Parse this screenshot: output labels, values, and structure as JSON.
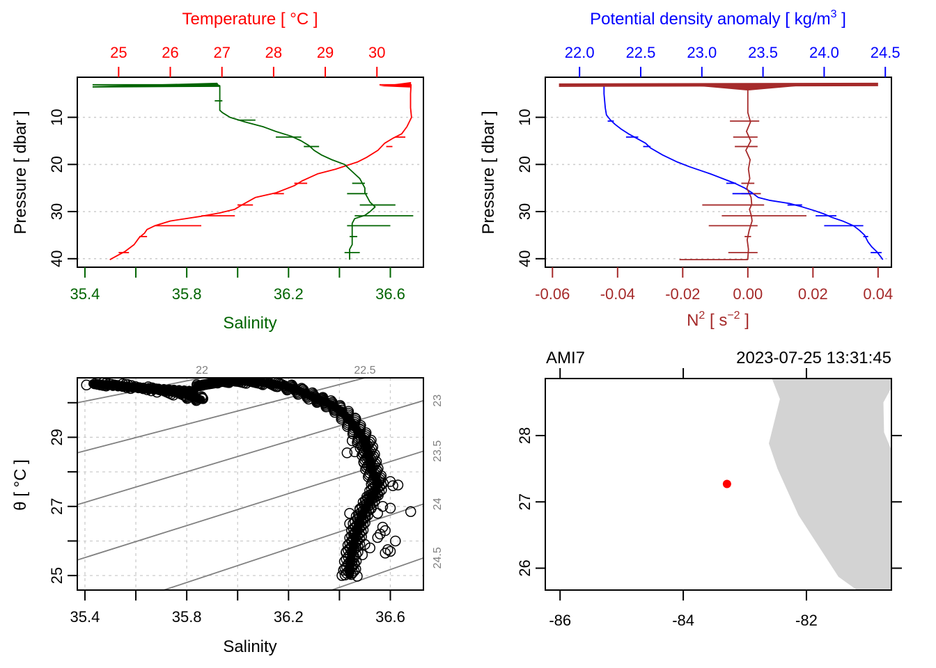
{
  "colors": {
    "temperature": "#ff0000",
    "salinity": "#006400",
    "density": "#0000ff",
    "n2": "#a52a2a",
    "grid": "#cccccc",
    "isopycnal": "#808080",
    "land": "#d3d3d3",
    "station": "#ff0000",
    "frame": "#000000"
  },
  "chart_data": [
    {
      "id": "temperature-salinity-profile",
      "type": "line",
      "title": "Temperature [ °C ]",
      "xlabel_top": "Temperature [ °C ]",
      "xlabel_bottom": "Salinity",
      "ylabel": "Pressure [ dbar ]",
      "ylim": [
        41.8,
        1.5
      ],
      "yticks": [
        "10",
        "20",
        "30",
        "40"
      ],
      "xtop_ticks": [
        "25",
        "26",
        "27",
        "28",
        "29",
        "30"
      ],
      "xtop_range": [
        24.2,
        30.9
      ],
      "xbottom_ticks": [
        "35.4",
        "35.8",
        "36.2",
        "36.6"
      ],
      "xbottom_tick_values": [
        35.4,
        35.6,
        35.8,
        36.0,
        36.2,
        36.4,
        36.6
      ],
      "xbottom_range": [
        35.37,
        36.73
      ],
      "grid": "horizontal-dotted",
      "series": [
        {
          "name": "Temperature",
          "axis": "top",
          "pressure": [
            3.1,
            3.1,
            3.2,
            5,
            8,
            10,
            12,
            13.5,
            14.5,
            15.5,
            17,
            18.5,
            19.5,
            20.1,
            21,
            22,
            23.5,
            24.5,
            26,
            27,
            28.5,
            29.5,
            30.3,
            31,
            32,
            33,
            33.8,
            34.6,
            35.5,
            37,
            38.5,
            39.3,
            40.2
          ],
          "values": [
            30.05,
            30.66,
            30.66,
            30.65,
            30.65,
            30.67,
            30.58,
            30.48,
            30.3,
            30.15,
            30.02,
            29.8,
            29.62,
            29.45,
            29.2,
            28.85,
            28.55,
            28.4,
            28.05,
            27.65,
            27.4,
            27.25,
            26.95,
            26.6,
            26.0,
            25.7,
            25.55,
            25.5,
            25.4,
            25.3,
            25.12,
            24.98,
            24.83
          ]
        },
        {
          "name": "Salinity",
          "axis": "bottom",
          "pressure": [
            3.1,
            3.1,
            3.3,
            6,
            8.5,
            9,
            10,
            11,
            12,
            13,
            14,
            15,
            16,
            17,
            18,
            19,
            20,
            21,
            22,
            23,
            24,
            25,
            26,
            27,
            28,
            29,
            30,
            30.8,
            31.5,
            32.5,
            33,
            34,
            35,
            36,
            37,
            38,
            39,
            40.2
          ],
          "values": [
            35.43,
            35.92,
            35.93,
            35.93,
            35.93,
            35.94,
            35.97,
            36.03,
            36.1,
            36.15,
            36.21,
            36.25,
            36.28,
            36.3,
            36.33,
            36.37,
            36.42,
            36.44,
            36.46,
            36.48,
            36.49,
            36.5,
            36.5,
            36.51,
            36.52,
            36.54,
            36.52,
            36.5,
            36.46,
            36.45,
            36.45,
            36.45,
            36.45,
            36.45,
            36.45,
            36.44,
            36.44,
            36.44
          ]
        }
      ],
      "spikes": [
        {
          "series": "Temperature",
          "pressure": 14.2,
          "from": 30.35,
          "to": 30.55
        },
        {
          "series": "Temperature",
          "pressure": 16.2,
          "from": 30.18,
          "to": 30.3
        },
        {
          "series": "Temperature",
          "pressure": 24.0,
          "from": 28.4,
          "to": 28.65
        },
        {
          "series": "Temperature",
          "pressure": 26.2,
          "from": 28.0,
          "to": 28.2
        },
        {
          "series": "Temperature",
          "pressure": 28.6,
          "from": 27.3,
          "to": 27.6
        },
        {
          "series": "Temperature",
          "pressure": 30.9,
          "from": 26.6,
          "to": 27.25
        },
        {
          "series": "Temperature",
          "pressure": 33.0,
          "from": 25.7,
          "to": 26.6
        },
        {
          "series": "Temperature",
          "pressure": 35.3,
          "from": 25.4,
          "to": 25.55
        },
        {
          "series": "Temperature",
          "pressure": 38.7,
          "from": 25.0,
          "to": 25.2
        },
        {
          "series": "Salinity",
          "pressure": 6.5,
          "from": 35.91,
          "to": 35.94
        },
        {
          "series": "Salinity",
          "pressure": 10.6,
          "from": 36.0,
          "to": 36.07
        },
        {
          "series": "Salinity",
          "pressure": 14.2,
          "from": 36.15,
          "to": 36.25
        },
        {
          "series": "Salinity",
          "pressure": 16.2,
          "from": 36.26,
          "to": 36.32
        },
        {
          "series": "Salinity",
          "pressure": 24.0,
          "from": 36.45,
          "to": 36.5
        },
        {
          "series": "Salinity",
          "pressure": 26.2,
          "from": 36.43,
          "to": 36.51
        },
        {
          "series": "Salinity",
          "pressure": 28.6,
          "from": 36.48,
          "to": 36.62
        },
        {
          "series": "Salinity",
          "pressure": 30.9,
          "from": 36.46,
          "to": 36.69
        },
        {
          "series": "Salinity",
          "pressure": 33.0,
          "from": 36.43,
          "to": 36.6
        },
        {
          "series": "Salinity",
          "pressure": 35.3,
          "from": 36.44,
          "to": 36.47
        },
        {
          "series": "Salinity",
          "pressure": 38.7,
          "from": 36.42,
          "to": 36.48
        }
      ]
    },
    {
      "id": "density-n2-profile",
      "type": "line",
      "title": "Potential density anomaly [ kg/m³ ]",
      "xlabel_top_main": "Potential density anomaly [ kg/m",
      "xlabel_top_sup": "3",
      "xlabel_top_close": " ]",
      "xlabel_bottom_main": "N",
      "xlabel_bottom_sup": "2",
      "xlabel_bottom_unit": " [ s",
      "xlabel_bottom_unit_sup": "−2",
      "xlabel_bottom_close": " ]",
      "ylabel": "Pressure [ dbar ]",
      "ylim": [
        41.8,
        1.5
      ],
      "yticks": [
        "10",
        "20",
        "30",
        "40"
      ],
      "xtop_ticks": [
        "22.0",
        "22.5",
        "23.0",
        "23.5",
        "24.0",
        "24.5"
      ],
      "xtop_range": [
        21.72,
        24.55
      ],
      "xbottom_ticks": [
        "-0.06",
        "-0.04",
        "-0.02",
        "0.00",
        "0.02",
        "0.04"
      ],
      "xbottom_range": [
        -0.0622,
        0.0441
      ],
      "grid": "horizontal-dotted",
      "series": [
        {
          "name": "Potential density anomaly",
          "axis": "top",
          "pressure": [
            3.1,
            3.1,
            3.2,
            5,
            8,
            9.5,
            10.5,
            11.5,
            12.5,
            13.5,
            14.5,
            15.5,
            16.5,
            18,
            19.5,
            20.5,
            22,
            23,
            24,
            25,
            26,
            27,
            27.6,
            28.3,
            29,
            29.8,
            30.5,
            31.2,
            32,
            33,
            34,
            35,
            36.5,
            37.5,
            38.5,
            39.5,
            40.2
          ],
          "values": [
            21.93,
            22.2,
            22.2,
            22.2,
            22.21,
            22.22,
            22.25,
            22.29,
            22.34,
            22.4,
            22.47,
            22.54,
            22.58,
            22.68,
            22.8,
            22.9,
            23.07,
            23.17,
            23.27,
            23.35,
            23.41,
            23.46,
            23.55,
            23.72,
            23.82,
            23.92,
            24.0,
            24.06,
            24.15,
            24.24,
            24.29,
            24.33,
            24.36,
            24.39,
            24.43,
            24.46,
            24.48
          ]
        },
        {
          "name": "N2",
          "axis": "bottom",
          "pressure": [
            3.1,
            3.6,
            4,
            6,
            9,
            11,
            13,
            15,
            17,
            19,
            21,
            23,
            25,
            27,
            28.5,
            29.5,
            31,
            32,
            34,
            36,
            38,
            40,
            40.2
          ],
          "values": [
            0.0,
            0.0005,
            0.0,
            0.0,
            0.0,
            0.0008,
            -0.0004,
            0.0009,
            -0.0006,
            0.0007,
            0.0002,
            0.0006,
            -0.0003,
            0.001,
            0.0012,
            0.0005,
            0.0011,
            0.0013,
            0.0004,
            -0.0002,
            0.0002,
            0.0,
            0.0
          ]
        }
      ],
      "n2_top_spike": {
        "pressure": 3.1,
        "from": -0.058,
        "to": 0.04
      },
      "spikes": [
        {
          "series": "N2",
          "pressure": 10.8,
          "from": -0.0055,
          "to": 0.0035
        },
        {
          "series": "N2",
          "pressure": 14.2,
          "from": -0.0045,
          "to": 0.003
        },
        {
          "series": "N2",
          "pressure": 16.2,
          "from": -0.004,
          "to": 0.003
        },
        {
          "series": "N2",
          "pressure": 24.0,
          "from": -0.002,
          "to": 0.002
        },
        {
          "series": "N2",
          "pressure": 26.2,
          "from": -0.002,
          "to": 0.004
        },
        {
          "series": "N2",
          "pressure": 28.6,
          "from": -0.014,
          "to": 0.005
        },
        {
          "series": "N2",
          "pressure": 30.9,
          "from": -0.008,
          "to": 0.018
        },
        {
          "series": "N2",
          "pressure": 33.0,
          "from": -0.012,
          "to": 0.003
        },
        {
          "series": "N2",
          "pressure": 35.3,
          "from": -0.001,
          "to": 0.001
        },
        {
          "series": "N2",
          "pressure": 38.7,
          "from": -0.006,
          "to": 0.003
        },
        {
          "series": "N2",
          "pressure": 40.2,
          "from": -0.021,
          "to": 0.0
        },
        {
          "series": "Potential density anomaly",
          "pressure": 3.1,
          "from": 21.93,
          "to": 22.5
        },
        {
          "series": "Potential density anomaly",
          "pressure": 10.8,
          "from": 22.23,
          "to": 22.28
        },
        {
          "series": "Potential density anomaly",
          "pressure": 14.2,
          "from": 22.38,
          "to": 22.48
        },
        {
          "series": "Potential density anomaly",
          "pressure": 16.2,
          "from": 22.52,
          "to": 22.58
        },
        {
          "series": "Potential density anomaly",
          "pressure": 24.0,
          "from": 23.2,
          "to": 23.28
        },
        {
          "series": "Potential density anomaly",
          "pressure": 26.2,
          "from": 23.25,
          "to": 23.42
        },
        {
          "series": "Potential density anomaly",
          "pressure": 28.6,
          "from": 23.7,
          "to": 23.82
        },
        {
          "series": "Potential density anomaly",
          "pressure": 30.9,
          "from": 23.93,
          "to": 24.1
        },
        {
          "series": "Potential density anomaly",
          "pressure": 33.0,
          "from": 24.0,
          "to": 24.32
        },
        {
          "series": "Potential density anomaly",
          "pressure": 35.3,
          "from": 24.32,
          "to": 24.36
        },
        {
          "series": "Potential density anomaly",
          "pressure": 38.7,
          "from": 24.38,
          "to": 24.47
        }
      ]
    },
    {
      "id": "ts-diagram",
      "type": "scatter",
      "xlabel": "Salinity",
      "ylabel": "θ [ °C ]",
      "xlim": [
        35.37,
        36.73
      ],
      "ylim": [
        24.58,
        30.72
      ],
      "xticks": [
        "35.4",
        "35.8",
        "36.2",
        "36.6"
      ],
      "xtick_values": [
        35.4,
        35.6,
        35.8,
        36.0,
        36.2,
        36.4,
        36.6
      ],
      "yticks": [
        "25",
        "27",
        "29"
      ],
      "ytick_values": [
        25,
        26,
        27,
        28,
        29,
        30
      ],
      "grid": true,
      "isopycnals": [
        {
          "label": "22",
          "label_side": "top",
          "s_left": 35.37,
          "t_left": 30.0,
          "s_right": 35.86,
          "t_right": 30.72
        },
        {
          "label": "22.5",
          "label_side": "top",
          "s_left": 35.37,
          "t_left": 28.55,
          "s_right": 36.5,
          "t_right": 30.72
        },
        {
          "label": "23",
          "label_side": "right",
          "s_left": 35.37,
          "t_left": 27.05,
          "s_right": 36.73,
          "t_right": 30.06
        },
        {
          "label": "23.5",
          "label_side": "right",
          "s_left": 35.37,
          "t_left": 25.45,
          "s_right": 36.73,
          "t_right": 28.6
        },
        {
          "label": "24",
          "label_side": "right",
          "s_left": 35.71,
          "t_left": 24.58,
          "s_right": 36.73,
          "t_right": 27.07
        },
        {
          "label": "24.5",
          "label_side": "right",
          "s_left": 36.37,
          "t_left": 24.58,
          "s_right": 36.73,
          "t_right": 25.51
        }
      ],
      "points_trace": {
        "salinity": [
          35.43,
          35.55,
          35.7,
          35.8,
          35.86,
          35.84,
          35.93,
          36.0,
          36.1,
          36.18,
          36.24,
          36.3,
          36.35,
          36.4,
          36.44,
          36.47,
          36.5,
          36.51,
          36.52,
          36.53,
          36.55,
          36.54,
          36.52,
          36.5,
          36.48,
          36.47,
          36.46,
          36.45,
          36.44,
          36.44
        ],
        "theta": [
          30.55,
          30.5,
          30.35,
          30.22,
          30.08,
          30.48,
          30.6,
          30.62,
          30.58,
          30.5,
          30.35,
          30.15,
          30.0,
          29.8,
          29.5,
          29.2,
          28.9,
          28.6,
          28.3,
          28.0,
          27.7,
          27.4,
          27.2,
          26.9,
          26.6,
          26.3,
          26.0,
          25.7,
          25.3,
          25.0
        ]
      },
      "points_scatter": {
        "salinity": [
          35.86,
          35.84,
          36.43,
          36.46,
          36.47,
          36.45,
          36.6,
          36.61,
          36.63,
          36.68,
          36.57,
          36.6,
          36.55,
          36.5,
          36.58,
          36.56,
          36.62,
          36.59,
          36.6,
          36.44,
          36.46,
          36.5,
          36.52,
          36.55,
          36.41,
          36.47,
          36.45,
          36.49,
          36.57,
          36.58,
          36.44,
          36.48
        ],
        "theta": [
          30.12,
          30.52,
          28.55,
          28.58,
          28.85,
          28.9,
          27.72,
          27.6,
          27.62,
          26.85,
          27.0,
          26.95,
          26.8,
          26.7,
          26.3,
          26.2,
          26.0,
          25.75,
          25.7,
          26.5,
          26.2,
          25.9,
          25.8,
          26.1,
          25.0,
          24.98,
          25.4,
          25.6,
          26.4,
          25.65,
          26.8,
          26.9
        ]
      }
    },
    {
      "id": "station-map",
      "type": "scatter",
      "title_left": "AMI7",
      "title_right": "2023-07-25 13:31:45",
      "xlim": [
        -86.24,
        -80.62
      ],
      "ylim": [
        25.67,
        28.86
      ],
      "xticks": [
        "-86",
        "-84",
        "-82"
      ],
      "xtick_values": [
        -86,
        -84,
        -82
      ],
      "yticks": [
        "26",
        "27",
        "28"
      ],
      "ytick_values": [
        26,
        27,
        28
      ],
      "station": {
        "lon": -83.29,
        "lat": 27.27
      },
      "land": {
        "lon": [
          -82.56,
          -82.43,
          -82.61,
          -82.47,
          -82.13,
          -81.48,
          -81.18,
          -80.62,
          -80.62,
          -80.74,
          -80.75,
          -80.54
        ],
        "lat": [
          28.86,
          28.55,
          27.88,
          27.5,
          26.8,
          25.87,
          25.67,
          25.67,
          27.78,
          28.05,
          28.5,
          28.86
        ]
      }
    }
  ]
}
